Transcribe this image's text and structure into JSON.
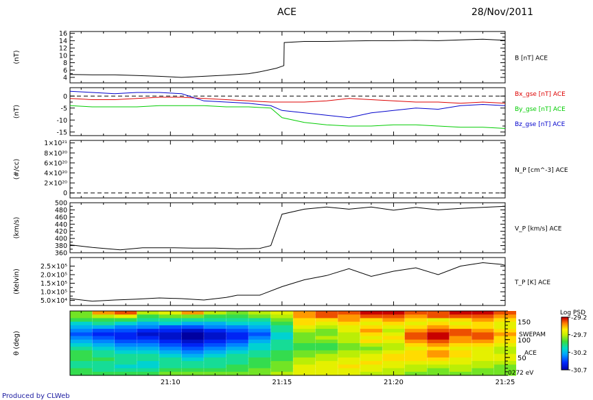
{
  "header": {
    "title": "ACE",
    "date": "28/Nov/2011"
  },
  "footer": {
    "credit": "Produced by CLWeb"
  },
  "x_axis": {
    "start": "21:05:30",
    "end": "21:25:00",
    "tick_labels": [
      "21:10",
      "21:15",
      "21:20",
      "21:25"
    ]
  },
  "chart_data": [
    {
      "type": "line",
      "ylabel": "(nT)",
      "yticks": [
        "16",
        "14",
        "12",
        "10",
        "8",
        "6",
        "4"
      ],
      "ylim": [
        2.5,
        16.5
      ],
      "series": [
        {
          "name": "B [nT] ACE",
          "color": "#000000",
          "x": [
            "21:05:30",
            "21:06:30",
            "21:07:30",
            "21:08:30",
            "21:09:30",
            "21:10:30",
            "21:11:30",
            "21:12:30",
            "21:13:30",
            "21:14:00",
            "21:14:45",
            "21:15:05",
            "21:15:06",
            "21:16:00",
            "21:17:00",
            "21:18:00",
            "21:19:00",
            "21:20:00",
            "21:21:00",
            "21:22:00",
            "21:23:00",
            "21:24:00",
            "21:25:00"
          ],
          "values": [
            4.8,
            4.7,
            4.7,
            4.5,
            4.3,
            4.0,
            4.3,
            4.6,
            5.0,
            5.5,
            6.5,
            7.2,
            13.5,
            13.8,
            13.8,
            13.9,
            14.0,
            14.0,
            14.1,
            14.0,
            14.2,
            14.4,
            14.1
          ]
        }
      ]
    },
    {
      "type": "line",
      "ylabel": "(nT)",
      "yticks": [
        "0",
        "-5",
        "-10",
        "-15"
      ],
      "ylim": [
        -16.5,
        3.5
      ],
      "zero_line": true,
      "series": [
        {
          "name": "Bx_gse [nT] ACE",
          "color": "#dd0000",
          "x": [
            "21:05:30",
            "21:06:30",
            "21:07:30",
            "21:08:30",
            "21:09:30",
            "21:10:30",
            "21:11:30",
            "21:12:30",
            "21:13:30",
            "21:14:30",
            "21:15:00",
            "21:16:00",
            "21:17:00",
            "21:18:00",
            "21:19:00",
            "21:20:00",
            "21:21:00",
            "21:22:00",
            "21:23:00",
            "21:24:00",
            "21:25:00"
          ],
          "values": [
            -1.0,
            -1.5,
            -1.5,
            -1.0,
            -0.5,
            -0.5,
            -1.0,
            -1.5,
            -2.0,
            -2.5,
            -2.5,
            -2.5,
            -2.0,
            -1.0,
            -1.5,
            -2.0,
            -2.5,
            -2.5,
            -3.0,
            -2.5,
            -3.0
          ]
        },
        {
          "name": "By_gse [nT] ACE",
          "color": "#00cc00",
          "x": [
            "21:05:30",
            "21:06:30",
            "21:07:30",
            "21:08:30",
            "21:09:30",
            "21:10:30",
            "21:11:30",
            "21:12:30",
            "21:13:30",
            "21:14:30",
            "21:15:00",
            "21:16:00",
            "21:17:00",
            "21:18:00",
            "21:19:00",
            "21:20:00",
            "21:21:00",
            "21:22:00",
            "21:23:00",
            "21:24:00",
            "21:25:00"
          ],
          "values": [
            -4.0,
            -4.5,
            -4.5,
            -4.5,
            -4.0,
            -4.0,
            -4.0,
            -4.5,
            -4.5,
            -5.0,
            -9.0,
            -11.0,
            -12.0,
            -12.5,
            -12.5,
            -12.0,
            -12.0,
            -12.5,
            -13.0,
            -13.0,
            -13.5
          ]
        },
        {
          "name": "Bz_gse [nT] ACE",
          "color": "#0000cc",
          "x": [
            "21:05:30",
            "21:06:30",
            "21:07:30",
            "21:08:30",
            "21:09:30",
            "21:10:30",
            "21:11:30",
            "21:12:30",
            "21:13:30",
            "21:14:30",
            "21:15:00",
            "21:16:00",
            "21:17:00",
            "21:18:00",
            "21:19:00",
            "21:20:00",
            "21:21:00",
            "21:22:00",
            "21:23:00",
            "21:24:00",
            "21:25:00"
          ],
          "values": [
            2.0,
            1.5,
            1.0,
            1.5,
            1.5,
            1.0,
            -2.0,
            -2.5,
            -3.0,
            -4.0,
            -6.0,
            -7.0,
            -8.0,
            -9.0,
            -7.0,
            -6.0,
            -5.0,
            -5.5,
            -4.0,
            -3.5,
            -4.0
          ]
        }
      ]
    },
    {
      "type": "line",
      "ylabel": "(#/cc)",
      "yticks": [
        "1×10²¹",
        "8×10²⁰",
        "6×10²⁰",
        "4×10²⁰",
        "2×10²⁰",
        "0"
      ],
      "ylim": [
        -1e+20,
        1.05e+21
      ],
      "series": [
        {
          "name": "N_P [cm^-3] ACE",
          "color": "#000000",
          "x": [
            "21:05:30",
            "21:25:00"
          ],
          "values": [
            0,
            0
          ]
        }
      ]
    },
    {
      "type": "line",
      "ylabel": "(km/s)",
      "yticks": [
        "500",
        "480",
        "460",
        "440",
        "420",
        "400",
        "380",
        "360"
      ],
      "ylim": [
        360,
        500
      ],
      "series": [
        {
          "name": "V_P [km/s] ACE",
          "color": "#000000",
          "x": [
            "21:05:30",
            "21:06:30",
            "21:07:45",
            "21:08:45",
            "21:10:00",
            "21:11:00",
            "21:12:00",
            "21:13:00",
            "21:14:00",
            "21:14:30",
            "21:15:00",
            "21:16:00",
            "21:17:00",
            "21:18:00",
            "21:19:00",
            "21:20:00",
            "21:21:00",
            "21:22:00",
            "21:23:00",
            "21:24:00",
            "21:25:00"
          ],
          "values": [
            382,
            375,
            368,
            374,
            374,
            373,
            373,
            371,
            372,
            380,
            468,
            482,
            488,
            482,
            488,
            479,
            487,
            480,
            484,
            487,
            490
          ]
        }
      ]
    },
    {
      "type": "line",
      "ylabel": "(Kelvin)",
      "yticks": [
        "2.5×10⁵",
        "2.0×10⁵",
        "1.5×10⁵",
        "1.0×10⁵",
        "5.0×10⁴"
      ],
      "ylim": [
        20000,
        300000
      ],
      "series": [
        {
          "name": "T_P [K] ACE",
          "color": "#000000",
          "x": [
            "21:05:30",
            "21:06:30",
            "21:07:30",
            "21:08:30",
            "21:09:30",
            "21:10:30",
            "21:11:30",
            "21:12:30",
            "21:13:00",
            "21:14:00",
            "21:15:00",
            "21:16:00",
            "21:17:00",
            "21:18:00",
            "21:19:00",
            "21:20:00",
            "21:21:00",
            "21:22:00",
            "21:23:00",
            "21:24:00",
            "21:24:50",
            "21:25:00"
          ],
          "values": [
            60000,
            45000,
            52000,
            57000,
            64000,
            60000,
            52000,
            67000,
            80000,
            80000,
            130000,
            170000,
            195000,
            235000,
            190000,
            220000,
            240000,
            200000,
            250000,
            270000,
            260000,
            255000
          ]
        }
      ]
    },
    {
      "type": "heatmap",
      "ylabel": "θ (deg)",
      "yticks": [
        "150",
        "100",
        "50"
      ],
      "labels": [
        "SWEPAM",
        "ACE",
        "0272 eV"
      ],
      "colorbar": {
        "title": "Log PSD",
        "ticks": [
          "-29.2",
          "-29.7",
          "-30.2",
          "-30.7"
        ],
        "range": [
          -30.7,
          -29.2
        ]
      },
      "ylim": [
        0,
        180
      ],
      "time_bins": [
        "21:05:30",
        "21:06:30",
        "21:07:30",
        "21:08:30",
        "21:09:30",
        "21:10:30",
        "21:11:30",
        "21:12:30",
        "21:13:30",
        "21:14:30",
        "21:15:30",
        "21:16:30",
        "21:17:30",
        "21:18:30",
        "21:19:30",
        "21:20:30",
        "21:21:30",
        "21:22:30",
        "21:23:30",
        "21:24:30"
      ],
      "theta_bins": [
        175,
        165,
        155,
        145,
        135,
        125,
        115,
        105,
        95,
        85,
        75,
        65,
        55,
        45,
        35,
        25,
        15,
        5
      ],
      "values": [
        [
          -29.8,
          -29.4,
          -29.3,
          -29.7,
          -29.6,
          -29.4,
          -29.7,
          -29.8,
          -29.7,
          -29.6,
          -29.4,
          -29.3,
          -29.3,
          -29.2,
          -29.2,
          -29.3,
          -29.3,
          -29.2,
          -29.2,
          -29.3
        ],
        [
          -29.8,
          -29.7,
          -29.6,
          -29.9,
          -29.8,
          -29.8,
          -29.9,
          -29.9,
          -29.8,
          -29.7,
          -29.4,
          -29.3,
          -29.4,
          -29.3,
          -29.3,
          -29.4,
          -29.3,
          -29.3,
          -29.3,
          -29.4
        ],
        [
          -29.9,
          -29.9,
          -29.9,
          -30.0,
          -30.0,
          -30.0,
          -30.0,
          -30.0,
          -30.0,
          -29.8,
          -29.5,
          -29.5,
          -29.4,
          -29.5,
          -29.4,
          -29.5,
          -29.6,
          -29.5,
          -29.4,
          -29.5
        ],
        [
          -30.1,
          -30.0,
          -30.1,
          -30.2,
          -30.1,
          -30.2,
          -30.2,
          -30.1,
          -30.1,
          -29.9,
          -29.5,
          -29.6,
          -29.5,
          -29.6,
          -29.5,
          -29.6,
          -29.5,
          -29.6,
          -29.5,
          -29.6
        ],
        [
          -30.2,
          -30.2,
          -30.3,
          -30.3,
          -30.4,
          -30.4,
          -30.3,
          -30.3,
          -30.2,
          -30.0,
          -29.6,
          -29.7,
          -29.6,
          -29.5,
          -29.6,
          -29.5,
          -29.4,
          -29.5,
          -29.5,
          -29.6
        ],
        [
          -30.3,
          -30.4,
          -30.4,
          -30.5,
          -30.5,
          -30.6,
          -30.5,
          -30.4,
          -30.3,
          -30.0,
          -29.7,
          -29.8,
          -29.6,
          -29.4,
          -29.7,
          -29.4,
          -29.3,
          -29.3,
          -29.4,
          -29.5
        ],
        [
          -30.4,
          -30.5,
          -30.5,
          -30.6,
          -30.6,
          -30.7,
          -30.6,
          -30.5,
          -30.4,
          -30.1,
          -29.8,
          -29.8,
          -29.7,
          -29.5,
          -29.6,
          -29.3,
          -29.2,
          -29.3,
          -29.3,
          -29.4
        ],
        [
          -30.3,
          -30.4,
          -30.5,
          -30.5,
          -30.6,
          -30.7,
          -30.6,
          -30.5,
          -30.3,
          -30.1,
          -29.8,
          -29.7,
          -29.7,
          -29.6,
          -29.5,
          -29.3,
          -29.2,
          -29.4,
          -29.3,
          -29.5
        ],
        [
          -30.2,
          -30.3,
          -30.4,
          -30.4,
          -30.5,
          -30.6,
          -30.5,
          -30.4,
          -30.2,
          -30.0,
          -29.8,
          -29.8,
          -29.7,
          -29.5,
          -29.6,
          -29.4,
          -29.3,
          -29.4,
          -29.4,
          -29.5
        ],
        [
          -30.1,
          -30.2,
          -30.3,
          -30.3,
          -30.4,
          -30.5,
          -30.4,
          -30.3,
          -30.1,
          -30.0,
          -29.9,
          -29.9,
          -29.8,
          -29.7,
          -29.7,
          -29.5,
          -29.4,
          -29.5,
          -29.5,
          -29.6
        ],
        [
          -30.0,
          -30.1,
          -30.2,
          -30.2,
          -30.3,
          -30.4,
          -30.3,
          -30.2,
          -30.1,
          -30.0,
          -29.9,
          -29.9,
          -29.8,
          -29.8,
          -29.7,
          -29.6,
          -29.5,
          -29.6,
          -29.6,
          -29.7
        ],
        [
          -29.9,
          -30.0,
          -30.1,
          -30.1,
          -30.2,
          -30.3,
          -30.2,
          -30.1,
          -30.0,
          -29.9,
          -29.8,
          -29.8,
          -29.7,
          -29.7,
          -29.6,
          -29.5,
          -29.4,
          -29.5,
          -29.6,
          -29.7
        ],
        [
          -29.9,
          -30.0,
          -30.0,
          -30.0,
          -30.1,
          -30.2,
          -30.1,
          -30.0,
          -30.0,
          -29.9,
          -29.8,
          -29.7,
          -29.7,
          -29.6,
          -29.5,
          -29.5,
          -29.4,
          -29.5,
          -29.6,
          -29.6
        ],
        [
          -29.9,
          -29.9,
          -30.0,
          -30.0,
          -30.0,
          -30.1,
          -30.0,
          -30.0,
          -29.9,
          -29.9,
          -29.7,
          -29.7,
          -29.6,
          -29.6,
          -29.5,
          -29.5,
          -29.5,
          -29.6,
          -29.6,
          -29.6
        ],
        [
          -30.0,
          -30.0,
          -30.0,
          -30.1,
          -30.0,
          -30.0,
          -30.0,
          -30.0,
          -29.9,
          -29.8,
          -29.7,
          -29.6,
          -29.6,
          -29.5,
          -29.6,
          -29.6,
          -29.6,
          -29.6,
          -29.7,
          -29.7
        ],
        [
          -30.0,
          -30.0,
          -30.1,
          -30.1,
          -30.0,
          -30.0,
          -30.0,
          -29.9,
          -29.9,
          -29.8,
          -29.6,
          -29.6,
          -29.5,
          -29.6,
          -29.6,
          -29.7,
          -29.7,
          -29.7,
          -29.7,
          -29.8
        ],
        [
          -29.9,
          -30.0,
          -30.0,
          -30.0,
          -29.9,
          -29.9,
          -29.9,
          -29.9,
          -29.8,
          -29.8,
          -29.6,
          -29.6,
          -29.6,
          -29.6,
          -29.7,
          -29.7,
          -29.8,
          -29.7,
          -29.8,
          -29.8
        ],
        [
          -29.9,
          -29.9,
          -29.9,
          -29.9,
          -29.8,
          -29.8,
          -29.8,
          -29.8,
          -29.8,
          -29.7,
          -29.6,
          -29.6,
          -29.6,
          -29.7,
          -29.7,
          -29.8,
          -29.8,
          -29.8,
          -29.8,
          -29.8
        ]
      ]
    }
  ]
}
